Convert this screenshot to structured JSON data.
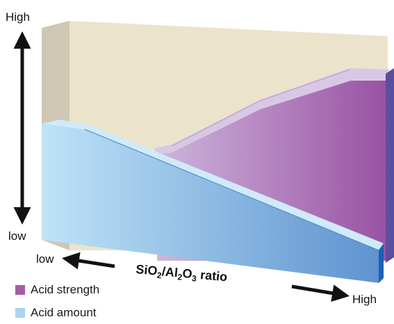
{
  "y_axis": {
    "top_label": "High",
    "bottom_label": "low"
  },
  "x_axis": {
    "left_label": "low",
    "right_label": "High",
    "title_parts": {
      "p1": "SiO",
      "s1": "2",
      "p2": "/Al",
      "s2": "2",
      "p3": "O",
      "s3": "3",
      "p4": " ratio"
    },
    "title": "SiO2/Al2O3 ratio"
  },
  "legend": [
    {
      "label": "Acid strength",
      "color": "#a35ea6"
    },
    {
      "label": "Acid amount",
      "color": "#a9d4f0"
    }
  ],
  "colors": {
    "back_wall": "#ece3cc",
    "side_wall": "#cdc7b3",
    "acid_strength_light": "#cdb6dc",
    "acid_strength_dark": "#9a52a3",
    "acid_amount_light": "#bfe3f7",
    "acid_amount_dark": "#5e93cf",
    "arrows": "#111111"
  }
}
